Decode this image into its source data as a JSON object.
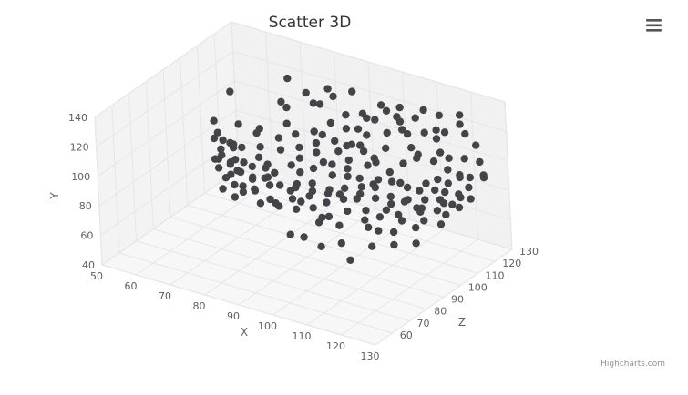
{
  "chart_data": {
    "type": "scatter",
    "title": "Scatter 3D",
    "xlabel": "X",
    "ylabel": "Y",
    "zlabel": "Z",
    "xlim": [
      50,
      130
    ],
    "ylim": [
      40,
      140
    ],
    "zlim": [
      50,
      130
    ],
    "x_ticks": [
      "50",
      "60",
      "70",
      "80",
      "90",
      "100",
      "110",
      "120",
      "130"
    ],
    "y_ticks": [
      "40",
      "60",
      "80",
      "100",
      "120",
      "140"
    ],
    "z_ticks": [
      "60",
      "70",
      "80",
      "90",
      "100",
      "110",
      "120",
      "130"
    ],
    "grid": true,
    "colors": {
      "points": "#434348",
      "grid": "#e6e6e6",
      "panel": "#f4f4f4",
      "text": "#606060"
    },
    "series": [
      {
        "points": [
          [
            60,
            92,
            112
          ],
          [
            62,
            88,
            103
          ],
          [
            58,
            101,
            102
          ],
          [
            59,
            115,
            110
          ],
          [
            66,
            97,
            90
          ],
          [
            61,
            96,
            96
          ],
          [
            64,
            90,
            101
          ],
          [
            70,
            100,
            103
          ],
          [
            68,
            93,
            98
          ],
          [
            72,
            106,
            101
          ],
          [
            74,
            89,
            92
          ],
          [
            76,
            85,
            88
          ],
          [
            78,
            82,
            85
          ],
          [
            79,
            93,
            90
          ],
          [
            74,
            112,
            113
          ],
          [
            80,
            126,
            113
          ],
          [
            84,
            121,
            113
          ],
          [
            71,
            124,
            120
          ],
          [
            81,
            118,
            115
          ],
          [
            86,
            132,
            114
          ],
          [
            88,
            129,
            113
          ],
          [
            90,
            128,
            120
          ],
          [
            89,
            111,
            104
          ],
          [
            92,
            120,
            112
          ],
          [
            95,
            106,
            106
          ],
          [
            97,
            100,
            103
          ],
          [
            95,
            115,
            118
          ],
          [
            99,
            119,
            115
          ],
          [
            101,
            124,
            118
          ],
          [
            104,
            122,
            118
          ],
          [
            99,
            109,
            106
          ],
          [
            103,
            103,
            106
          ],
          [
            106,
            111,
            107
          ],
          [
            107,
            124,
            114
          ],
          [
            110,
            126,
            117
          ],
          [
            112,
            132,
            118
          ],
          [
            115,
            128,
            121
          ],
          [
            118,
            121,
            118
          ],
          [
            121,
            126,
            121
          ],
          [
            115,
            112,
            108
          ],
          [
            118,
            107,
            111
          ],
          [
            121,
            100,
            107
          ],
          [
            123,
            97,
            109
          ],
          [
            120,
            92,
            107
          ],
          [
            117,
            92,
            104
          ],
          [
            113,
            97,
            101
          ],
          [
            111,
            88,
            99
          ],
          [
            106,
            93,
            99
          ],
          [
            103,
            86,
            97
          ],
          [
            98,
            84,
            95
          ],
          [
            95,
            78,
            93
          ],
          [
            92,
            74,
            91
          ],
          [
            88,
            72,
            89
          ],
          [
            84,
            73,
            87
          ],
          [
            86,
            82,
            93
          ],
          [
            90,
            86,
            95
          ],
          [
            94,
            91,
            99
          ],
          [
            98,
            92,
            100
          ],
          [
            102,
            99,
            104
          ],
          [
            107,
            96,
            100
          ],
          [
            111,
            104,
            107
          ],
          [
            114,
            108,
            109
          ],
          [
            124,
            108,
            117
          ],
          [
            126,
            104,
            110
          ],
          [
            128,
            96,
            111
          ],
          [
            130,
            100,
            116
          ],
          [
            127,
            91,
            108
          ],
          [
            124,
            95,
            105
          ],
          [
            119,
            88,
            103
          ],
          [
            117,
            82,
            102
          ],
          [
            114,
            85,
            101
          ],
          [
            110,
            79,
            98
          ],
          [
            105,
            77,
            96
          ],
          [
            100,
            74,
            95
          ],
          [
            96,
            70,
            92
          ],
          [
            93,
            64,
            92
          ],
          [
            88,
            58,
            85
          ],
          [
            92,
            59,
            85
          ],
          [
            97,
            56,
            85
          ],
          [
            102,
            60,
            87
          ],
          [
            107,
            56,
            82
          ],
          [
            111,
            64,
            87
          ],
          [
            116,
            66,
            90
          ],
          [
            121,
            68,
            93
          ],
          [
            119,
            74,
            97
          ],
          [
            115,
            76,
            97
          ],
          [
            125,
            82,
            103
          ],
          [
            123,
            86,
            106
          ],
          [
            127,
            85,
            107
          ],
          [
            125,
            78,
            100
          ],
          [
            120,
            77,
            100
          ],
          [
            113,
            77,
            99
          ],
          [
            108,
            73,
            98
          ],
          [
            104,
            69,
            97
          ],
          [
            99,
            66,
            92
          ],
          [
            94,
            68,
            92
          ],
          [
            89,
            77,
            90
          ],
          [
            85,
            80,
            92
          ],
          [
            82,
            77,
            86
          ],
          [
            80,
            82,
            90
          ],
          [
            76,
            80,
            95
          ],
          [
            72,
            76,
            90
          ],
          [
            69,
            82,
            93
          ],
          [
            66,
            84,
            95
          ],
          [
            63,
            86,
            96
          ],
          [
            66,
            70,
            90
          ],
          [
            70,
            68,
            89
          ],
          [
            67,
            78,
            93
          ],
          [
            73,
            96,
            99
          ],
          [
            76,
            100,
            104
          ],
          [
            79,
            98,
            99
          ],
          [
            83,
            100,
            102
          ],
          [
            87,
            104,
            104
          ],
          [
            91,
            97,
            100
          ],
          [
            94,
            104,
            103
          ],
          [
            97,
            109,
            105
          ],
          [
            100,
            115,
            108
          ],
          [
            104,
            116,
            112
          ],
          [
            109,
            117,
            114
          ],
          [
            113,
            119,
            116
          ],
          [
            116,
            116,
            117
          ],
          [
            119,
            112,
            113
          ],
          [
            122,
            111,
            112
          ],
          [
            126,
            116,
            120
          ],
          [
            129,
            110,
            116
          ],
          [
            131,
            104,
            114
          ],
          [
            128,
            102,
            112
          ],
          [
            125,
            100,
            112
          ],
          [
            122,
            104,
            111
          ],
          [
            118,
            96,
            106
          ],
          [
            114,
            93,
            103
          ],
          [
            110,
            95,
            102
          ],
          [
            106,
            90,
            100
          ],
          [
            101,
            92,
            101
          ],
          [
            97,
            95,
            102
          ],
          [
            93,
            96,
            101
          ],
          [
            89,
            93,
            98
          ],
          [
            86,
            90,
            96
          ],
          [
            83,
            92,
            97
          ],
          [
            80,
            88,
            93
          ],
          [
            77,
            90,
            95
          ],
          [
            74,
            92,
            96
          ],
          [
            71,
            89,
            93
          ],
          [
            68,
            88,
            94
          ],
          [
            65,
            90,
            99
          ],
          [
            62,
            93,
            99
          ],
          [
            60,
            96,
            100
          ],
          [
            63,
            85,
            94
          ],
          [
            67,
            85,
            93
          ],
          [
            71,
            84,
            91
          ],
          [
            75,
            84,
            90
          ],
          [
            79,
            86,
            91
          ],
          [
            83,
            84,
            90
          ],
          [
            87,
            86,
            92
          ],
          [
            91,
            83,
            93
          ],
          [
            95,
            85,
            95
          ],
          [
            99,
            88,
            96
          ],
          [
            103,
            90,
            98
          ],
          [
            107,
            85,
            98
          ],
          [
            111,
            83,
            99
          ],
          [
            115,
            87,
            101
          ],
          [
            119,
            84,
            101
          ],
          [
            123,
            90,
            104
          ],
          [
            127,
            94,
            107
          ],
          [
            130,
            92,
            108
          ],
          [
            126,
            88,
            105
          ],
          [
            122,
            82,
            104
          ],
          [
            118,
            80,
            102
          ],
          [
            114,
            70,
            94
          ],
          [
            110,
            69,
            93
          ],
          [
            106,
            67,
            95
          ],
          [
            102,
            82,
            97
          ],
          [
            98,
            79,
            97
          ],
          [
            94,
            81,
            96
          ],
          [
            90,
            79,
            93
          ],
          [
            86,
            76,
            91
          ],
          [
            82,
            72,
            89
          ],
          [
            78,
            70,
            88
          ],
          [
            75,
            74,
            91
          ],
          [
            72,
            72,
            90
          ],
          [
            69,
            74,
            91
          ],
          [
            66,
            76,
            92
          ],
          [
            63,
            79,
            94
          ],
          [
            61,
            82,
            96
          ],
          [
            85,
            108,
            107
          ],
          [
            89,
            115,
            109
          ],
          [
            93,
            113,
            110
          ],
          [
            96,
            122,
            114
          ],
          [
            100,
            128,
            117
          ],
          [
            105,
            129,
            118
          ],
          [
            108,
            120,
            113
          ],
          [
            112,
            113,
            110
          ],
          [
            116,
            122,
            117
          ],
          [
            120,
            130,
            123
          ],
          [
            124,
            124,
            118
          ],
          [
            109,
            100,
            103
          ],
          [
            105,
            104,
            103
          ],
          [
            101,
            108,
            104
          ],
          [
            96,
            114,
            111
          ],
          [
            92,
            108,
            105
          ],
          [
            88,
            100,
            102
          ],
          [
            84,
            95,
            100
          ],
          [
            81,
            106,
            104
          ],
          [
            77,
            108,
            107
          ],
          [
            73,
            116,
            112
          ]
        ]
      }
    ]
  },
  "ui": {
    "credits": "Highcharts.com",
    "menu_icon": "hamburger-menu-icon"
  }
}
